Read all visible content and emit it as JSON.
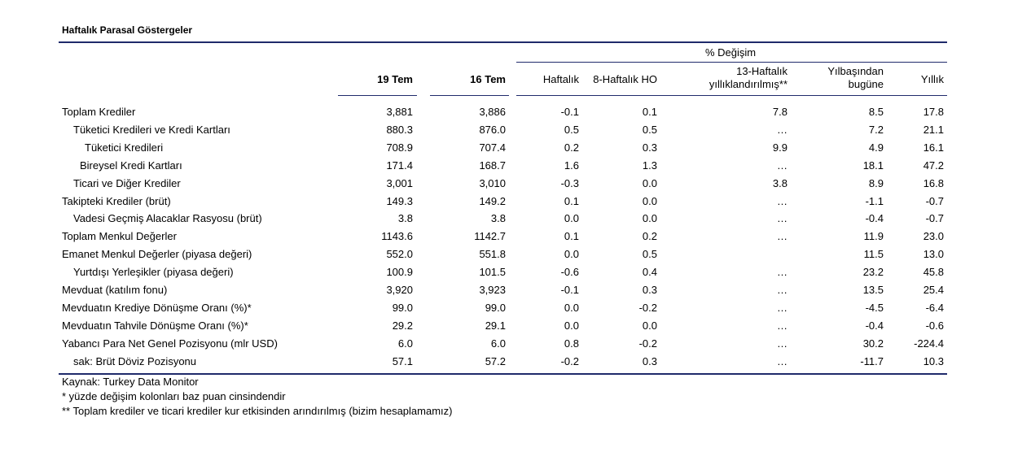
{
  "title": "Haftalık Parasal Göstergeler",
  "header": {
    "group_label": "% Değişim",
    "col1": "19 Tem",
    "col2": "16 Tem",
    "col3": "Haftalık",
    "col4": "8-Haftalık HO",
    "col5_line1": "13-Haftalık",
    "col5_line2": "yıllıklandırılmış**",
    "col6_line1": "Yılbaşından",
    "col6_line2": "bugüne",
    "col7": "Yıllık"
  },
  "rows": [
    {
      "label": "Toplam Krediler",
      "v": [
        "3,881",
        "3,886",
        "-0.1",
        "0.1",
        "7.8",
        "8.5",
        "17.8"
      ]
    },
    {
      "label": "Tüketici Kredileri ve Kredi Kartları",
      "v": [
        "880.3",
        "876.0",
        "0.5",
        "0.5",
        "…",
        "7.2",
        "21.1"
      ]
    },
    {
      "label": "Tüketici Kredileri",
      "v": [
        "708.9",
        "707.4",
        "0.2",
        "0.3",
        "9.9",
        "4.9",
        "16.1"
      ]
    },
    {
      "label": "Bireysel Kredi Kartları",
      "v": [
        "171.4",
        "168.7",
        "1.6",
        "1.3",
        "…",
        "18.1",
        "47.2"
      ]
    },
    {
      "label": "Ticari ve Diğer Krediler",
      "v": [
        "3,001",
        "3,010",
        "-0.3",
        "0.0",
        "3.8",
        "8.9",
        "16.8"
      ]
    },
    {
      "label": "Takipteki Krediler (brüt)",
      "v": [
        "149.3",
        "149.2",
        "0.1",
        "0.0",
        "…",
        "-1.1",
        "-0.7"
      ]
    },
    {
      "label": "Vadesi Geçmiş Alacaklar Rasyosu (brüt)",
      "v": [
        "3.8",
        "3.8",
        "0.0",
        "0.0",
        "…",
        "-0.4",
        "-0.7"
      ]
    },
    {
      "label": "Toplam Menkul Değerler",
      "v": [
        "1143.6",
        "1142.7",
        "0.1",
        "0.2",
        "…",
        "11.9",
        "23.0"
      ]
    },
    {
      "label": "Emanet Menkul Değerler (piyasa değeri)",
      "v": [
        "552.0",
        "551.8",
        "0.0",
        "0.5",
        "",
        "11.5",
        "13.0"
      ]
    },
    {
      "label": "Yurtdışı Yerleşikler (piyasa değeri)",
      "v": [
        "100.9",
        "101.5",
        "-0.6",
        "0.4",
        "…",
        "23.2",
        "45.8"
      ]
    },
    {
      "label": "Mevduat (katılım fonu)",
      "v": [
        "3,920",
        "3,923",
        "-0.1",
        "0.3",
        "…",
        "13.5",
        "25.4"
      ]
    },
    {
      "label": "Mevduatın Krediye Dönüşme Oranı (%)*",
      "v": [
        "99.0",
        "99.0",
        "0.0",
        "-0.2",
        "…",
        "-4.5",
        "-6.4"
      ]
    },
    {
      "label": "Mevduatın Tahvile Dönüşme Oranı (%)*",
      "v": [
        "29.2",
        "29.1",
        "0.0",
        "0.0",
        "…",
        "-0.4",
        "-0.6"
      ]
    },
    {
      "label": "Yabancı Para Net Genel Pozisyonu (mlr USD)",
      "v": [
        "6.0",
        "6.0",
        "0.8",
        "-0.2",
        "…",
        "30.2",
        "-224.4"
      ]
    },
    {
      "label": "sak: Brüt Döviz Pozisyonu",
      "v": [
        "57.1",
        "57.2",
        "-0.2",
        "0.3",
        "…",
        "-11.7",
        "10.3"
      ]
    }
  ],
  "footnotes": [
    "Kaynak: Turkey Data Monitor",
    "* yüzde değişim kolonları baz puan cinsindendir",
    "** Toplam krediler ve ticari krediler kur etkisinden arındırılmış (bizim hesaplamamız)"
  ]
}
